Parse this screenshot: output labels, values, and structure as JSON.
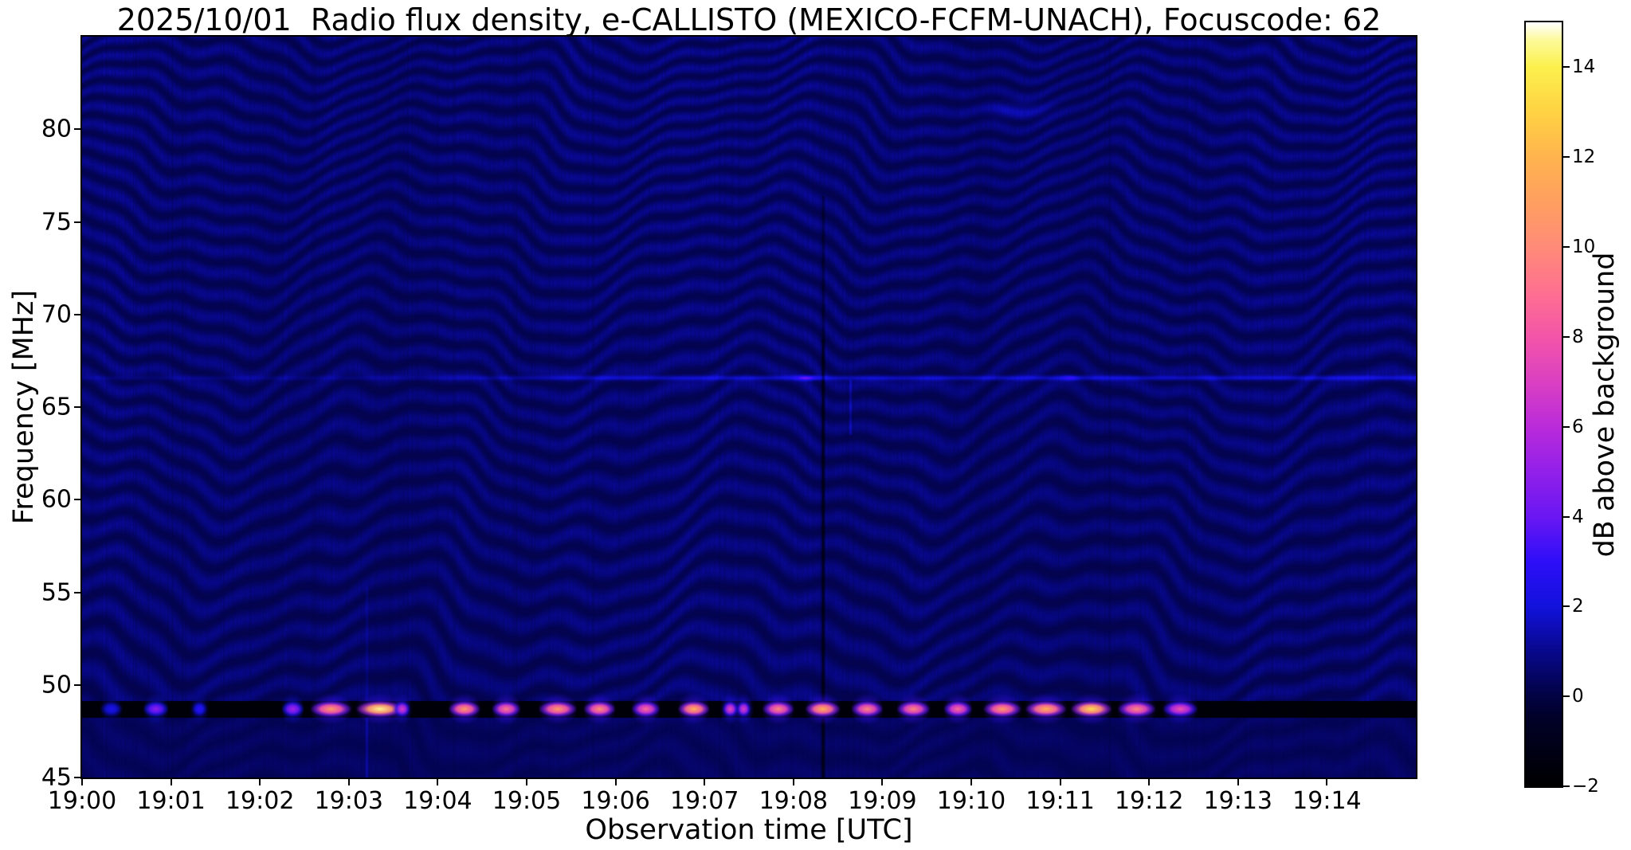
{
  "figure": {
    "title": "2025/10/01  Radio flux density, e-CALLISTO (MEXICO-FCFM-UNACH), Focuscode: 62"
  },
  "chart_data": {
    "type": "heatmap",
    "subtype": "radio-spectrogram",
    "title": "2025/10/01  Radio flux density, e-CALLISTO (MEXICO-FCFM-UNACH), Focuscode: 62",
    "xlabel": "Observation time [UTC]",
    "ylabel": "Frequency [MHz]",
    "x_tick_labels": [
      "19:00",
      "19:01",
      "19:02",
      "19:03",
      "19:04",
      "19:05",
      "19:06",
      "19:07",
      "19:08",
      "19:09",
      "19:10",
      "19:11",
      "19:12",
      "19:13",
      "19:14"
    ],
    "x_range_minutes_after_1900UTC": [
      0,
      15
    ],
    "y_tick_labels": [
      "45",
      "50",
      "55",
      "60",
      "65",
      "70",
      "75",
      "80"
    ],
    "y_tick_values": [
      45,
      50,
      55,
      60,
      65,
      70,
      75,
      80
    ],
    "y_range_MHz": [
      45,
      85
    ],
    "grid": false,
    "colorbar": {
      "label": "dB above background",
      "range_dB": [
        -2,
        15
      ],
      "tick_values": [
        14,
        12,
        10,
        8,
        6,
        4,
        2,
        0,
        -2
      ],
      "tick_labels": [
        "14",
        "12",
        "10",
        "8",
        "6",
        "4",
        "2",
        "0",
        "−2"
      ],
      "position": "right",
      "stops": [
        {
          "v": -2.0,
          "c": "#000000"
        },
        {
          "v": -0.5,
          "c": "#010128"
        },
        {
          "v": 0.0,
          "c": "#020243"
        },
        {
          "v": 1.0,
          "c": "#08088c"
        },
        {
          "v": 2.0,
          "c": "#1212dc"
        },
        {
          "v": 3.0,
          "c": "#2e0ef8"
        },
        {
          "v": 4.0,
          "c": "#6a17f3"
        },
        {
          "v": 5.0,
          "c": "#9220e9"
        },
        {
          "v": 6.0,
          "c": "#ba2bda"
        },
        {
          "v": 7.0,
          "c": "#da40c2"
        },
        {
          "v": 8.0,
          "c": "#f355a8"
        },
        {
          "v": 9.0,
          "c": "#fe7090"
        },
        {
          "v": 10.0,
          "c": "#ff8b78"
        },
        {
          "v": 11.0,
          "c": "#ff9f60"
        },
        {
          "v": 12.0,
          "c": "#ffb44e"
        },
        {
          "v": 13.0,
          "c": "#ffd243"
        },
        {
          "v": 14.0,
          "c": "#fcf04c"
        },
        {
          "v": 14.6,
          "c": "#fdfa9a"
        },
        {
          "v": 15.0,
          "c": "#ffffff"
        }
      ]
    },
    "background": {
      "description": "dark blue background ~0-1.5 dB with wavy quasi-horizontal interference fringes (chevron pattern), fine vertical streak noise",
      "base_dB": 0.2,
      "fringe_peak_dB": 1.3,
      "fringe_spacing_px": 26
    },
    "carrier_band": {
      "center_MHz": 48.7,
      "width_MHz": 0.8,
      "quiet_level_dB": -2,
      "description": "black absorbed channel across full time range with periodic bright bursts"
    },
    "bursts_min_width_peakdB": [
      [
        0.33,
        14,
        2.5
      ],
      [
        0.83,
        16,
        5.0
      ],
      [
        1.32,
        10,
        3.0
      ],
      [
        2.37,
        14,
        5.5
      ],
      [
        2.8,
        26,
        11.0
      ],
      [
        3.35,
        30,
        14.5
      ],
      [
        3.6,
        10,
        7.0
      ],
      [
        4.3,
        20,
        11.0
      ],
      [
        4.77,
        18,
        9.5
      ],
      [
        5.35,
        24,
        11.0
      ],
      [
        5.82,
        20,
        10.5
      ],
      [
        6.34,
        18,
        9.0
      ],
      [
        6.88,
        20,
        12.0
      ],
      [
        7.29,
        10,
        7.5
      ],
      [
        7.44,
        9,
        7.0
      ],
      [
        7.83,
        20,
        10.0
      ],
      [
        8.33,
        22,
        12.0
      ],
      [
        8.83,
        20,
        10.0
      ],
      [
        9.35,
        21,
        10.0
      ],
      [
        9.85,
        18,
        9.0
      ],
      [
        10.35,
        24,
        11.0
      ],
      [
        10.84,
        26,
        12.0
      ],
      [
        11.35,
        26,
        13.5
      ],
      [
        11.86,
        24,
        10.0
      ],
      [
        12.35,
        22,
        8.0
      ]
    ],
    "features": {
      "bright_horizontal_line_MHz": 66.6,
      "bright_horizontal_line_dB": 2.5,
      "dark_vertical_streak_minute": 8.33,
      "faint_bright_patch": {
        "minute": 10.5,
        "MHz": 81.5
      }
    }
  }
}
